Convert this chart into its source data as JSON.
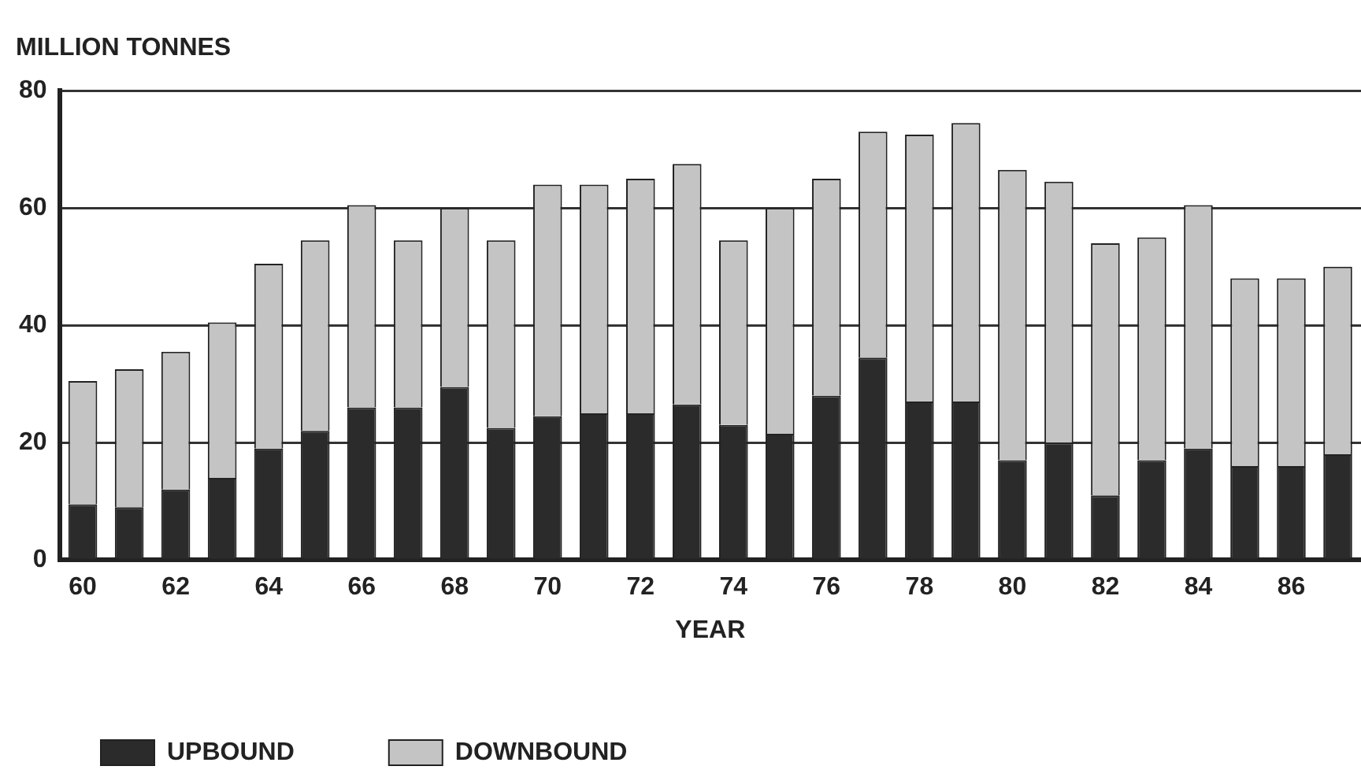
{
  "chart_data": {
    "type": "bar",
    "stacked": true,
    "ylabel": "MILLION TONNES",
    "xlabel": "YEAR",
    "categories": [
      "60",
      null,
      "62",
      null,
      "64",
      null,
      "66",
      null,
      "68",
      null,
      "70",
      null,
      "72",
      null,
      "74",
      null,
      "76",
      null,
      "78",
      null,
      "80",
      null,
      "82",
      null,
      "84",
      null,
      "86",
      null
    ],
    "series": [
      {
        "name": "UPBOUND",
        "color": "#2b2b2b",
        "values": [
          9.5,
          9,
          12,
          14,
          19,
          22,
          26,
          26,
          29.5,
          22.5,
          24.5,
          25,
          25,
          26.5,
          23,
          21.5,
          28,
          34.5,
          27,
          27,
          17,
          20,
          11,
          17,
          19,
          16,
          16,
          18
        ]
      },
      {
        "name": "DOWNBOUND",
        "color": "#c4c4c4",
        "values": [
          21,
          23.5,
          23.5,
          26.5,
          31.5,
          32.5,
          34.5,
          28.5,
          30.5,
          32,
          39.5,
          39,
          40,
          41,
          31.5,
          38.5,
          37,
          38.5,
          45.5,
          47.5,
          49.5,
          44.5,
          43,
          38,
          41.5,
          32,
          32,
          32
        ]
      }
    ],
    "ylim": [
      0,
      80
    ],
    "yticks": [
      0,
      20,
      40,
      60,
      80
    ],
    "grid": "y",
    "legend": "bottom left"
  }
}
